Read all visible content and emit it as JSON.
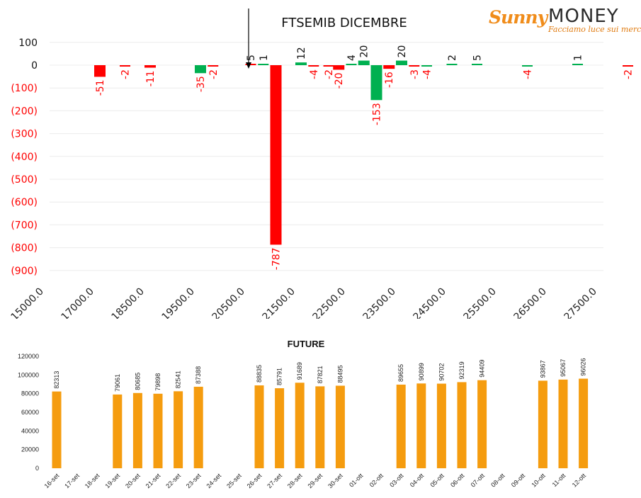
{
  "logo": {
    "brand_a": "Sunny",
    "brand_b": "MONEY",
    "tagline": "Facciamo luce sui mercati"
  },
  "colors": {
    "negative": "#ff0000",
    "positive": "#00b050",
    "future_bar": "#f59c0f",
    "axis_negative_text": "#ff0000"
  },
  "chart_data": [
    {
      "type": "bar",
      "title": "FTSEMIB DICEMBRE",
      "xlabel": "",
      "ylabel": "",
      "ylim": [
        -900,
        100
      ],
      "y_ticks": [
        "100",
        "0",
        "(100)",
        "(200)",
        "(300)",
        "(400)",
        "(500)",
        "(600)",
        "(700)",
        "(800)",
        "(900)"
      ],
      "x_tick_labels": [
        "15000.0",
        "17000.0",
        "18500.0",
        "19500.0",
        "20500.0",
        "21500.0",
        "22500.0",
        "23500.0",
        "24500.0",
        "25500.0",
        "26500.0",
        "27500.0"
      ],
      "grid": true,
      "marker": "arrow at current price, near 20500",
      "bars": [
        {
          "slot": 1.0,
          "value": -51,
          "label": "-51"
        },
        {
          "slot": 1.5,
          "value": -2,
          "label": "-2"
        },
        {
          "slot": 2.0,
          "value": -11,
          "label": "-11"
        },
        {
          "slot": 3.0,
          "value": -35,
          "label": "-35"
        },
        {
          "slot": 3.25,
          "value": -2,
          "label": "-2"
        },
        {
          "slot": 4.0,
          "value": 5,
          "label": "5"
        },
        {
          "slot": 4.25,
          "value": 1,
          "label": "1"
        },
        {
          "slot": 4.5,
          "value": -787,
          "label": "-787"
        },
        {
          "slot": 5.0,
          "value": 12,
          "label": "12"
        },
        {
          "slot": 5.25,
          "value": -4,
          "label": "-4"
        },
        {
          "slot": 5.55,
          "value": -2,
          "label": "-2"
        },
        {
          "slot": 5.75,
          "value": -20,
          "label": "-20"
        },
        {
          "slot": 6.0,
          "value": 4,
          "label": "4"
        },
        {
          "slot": 6.25,
          "value": 20,
          "label": "20"
        },
        {
          "slot": 6.5,
          "value": -153,
          "label": "-153"
        },
        {
          "slot": 6.75,
          "value": -16,
          "label": "-16"
        },
        {
          "slot": 7.0,
          "value": 20,
          "label": "20"
        },
        {
          "slot": 7.25,
          "value": -3,
          "label": "-3"
        },
        {
          "slot": 7.5,
          "value": -4,
          "label": "-4"
        },
        {
          "slot": 8.0,
          "value": 2,
          "label": "2"
        },
        {
          "slot": 8.5,
          "value": 5,
          "label": "5"
        },
        {
          "slot": 9.5,
          "value": -4,
          "label": "-4"
        },
        {
          "slot": 10.5,
          "value": 1,
          "label": "1"
        },
        {
          "slot": 11.5,
          "value": -2,
          "label": "-2"
        }
      ]
    },
    {
      "type": "bar",
      "title": "FUTURE",
      "xlabel": "",
      "ylabel": "",
      "ylim": [
        0,
        120000
      ],
      "y_ticks": [
        "120000",
        "100000",
        "80000",
        "60000",
        "40000",
        "20000",
        "0"
      ],
      "grid": false,
      "categories": [
        "16-set",
        "17-set",
        "18-set",
        "19-set",
        "20-set",
        "21-set",
        "22-set",
        "23-set",
        "24-set",
        "25-set",
        "26-set",
        "27-set",
        "28-set",
        "29-set",
        "30-set",
        "01-ott",
        "02-ott",
        "03-ott",
        "04-ott",
        "05-ott",
        "06-ott",
        "07-ott",
        "08-ott",
        "09-ott",
        "10-ott",
        "11-ott",
        "12-ott"
      ],
      "values": [
        82313,
        null,
        null,
        79061,
        80685,
        79898,
        82541,
        87388,
        null,
        null,
        88835,
        85791,
        91689,
        87821,
        88495,
        null,
        null,
        89655,
        90899,
        90702,
        92319,
        94409,
        null,
        null,
        93867,
        95067,
        96026
      ],
      "labels": [
        "82313",
        "",
        "",
        "79061",
        "80685",
        "79898",
        "82541",
        "87388",
        "",
        "",
        "88835",
        "85791",
        "91689",
        "87821",
        "88495",
        "",
        "",
        "89655",
        "90899",
        "90702",
        "92319",
        "94409",
        "",
        "",
        "93867",
        "95067",
        "96026"
      ]
    }
  ]
}
